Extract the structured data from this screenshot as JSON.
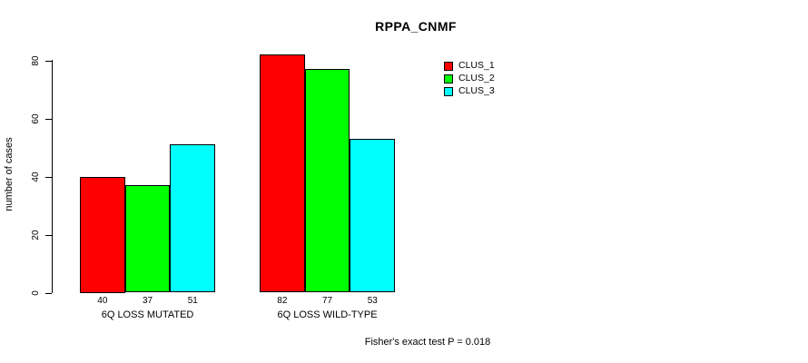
{
  "chart_data": {
    "type": "bar",
    "title": "RPPA_CNMF",
    "ylabel": "number of cases",
    "xlabel": "",
    "yticks": [
      0,
      20,
      40,
      60,
      80
    ],
    "ylim": [
      0,
      85
    ],
    "grid": false,
    "legend_position": "top-right",
    "categories": [
      "6Q LOSS MUTATED",
      "6Q LOSS WILD-TYPE"
    ],
    "series": [
      {
        "name": "CLUS_1",
        "color": "#FF0000",
        "values": [
          40,
          82
        ]
      },
      {
        "name": "CLUS_2",
        "color": "#00FF00",
        "values": [
          37,
          77
        ]
      },
      {
        "name": "CLUS_3",
        "color": "#00FFFF",
        "values": [
          51,
          53
        ]
      }
    ],
    "footnote": "Fisher's exact test P = 0.018"
  }
}
